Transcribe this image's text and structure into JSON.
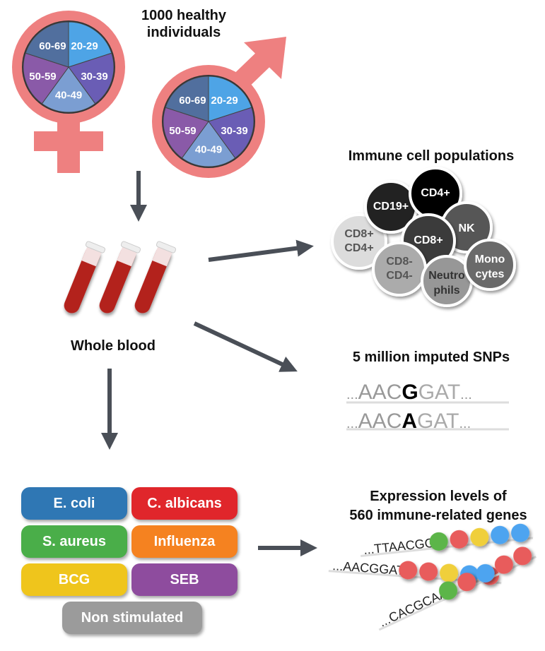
{
  "cohort": {
    "title_line1": "1000 healthy",
    "title_line2": "individuals",
    "age_groups": [
      "20-29",
      "30-39",
      "40-49",
      "50-59",
      "60-69"
    ],
    "age_colors": [
      "#4ea4e6",
      "#6a5db5",
      "#7b9ed2",
      "#8a5aa8",
      "#516f9e"
    ],
    "symbol_color": "#ee8080"
  },
  "sample": {
    "label": "Whole blood",
    "tube_color": "#b3201e"
  },
  "immune": {
    "title": "Immune cell populations",
    "cells": [
      {
        "label": "CD8+ CD4+",
        "l1": "CD8",
        "s1": "+",
        "l2": "CD4",
        "s2": "+",
        "fill": "#dcdcdc",
        "text": "#555"
      },
      {
        "label": "CD19+",
        "l1": "CD19",
        "s1": "+",
        "fill": "#222",
        "text": "#fff"
      },
      {
        "label": "CD4+",
        "l1": "CD4",
        "s1": "+",
        "fill": "#000",
        "text": "#fff"
      },
      {
        "label": "NK",
        "l1": "NK",
        "fill": "#575757",
        "text": "#fff"
      },
      {
        "label": "CD8+",
        "l1": "CD8",
        "s1": "+",
        "fill": "#3a3a3a",
        "text": "#fff"
      },
      {
        "label": "CD8- CD4-",
        "l1": "CD8",
        "s1": "-",
        "l2": "CD4",
        "s2": "-",
        "fill": "#ababab",
        "text": "#555"
      },
      {
        "label": "Neutrophils",
        "l1": "Neutro",
        "l2": "phils",
        "fill": "#979797",
        "text": "#333"
      },
      {
        "label": "Monocytes",
        "l1": "Mono",
        "l2": "cytes",
        "fill": "#6b6b6b",
        "text": "#fff"
      }
    ]
  },
  "snps": {
    "title": "5 million imputed SNPs",
    "seq1": {
      "pre": "AAC",
      "snp": "G",
      "post": "GAT"
    },
    "seq2": {
      "pre": "AAC",
      "snp": "A",
      "post": "GAT"
    },
    "ellipsis": "..."
  },
  "stimuli": [
    {
      "label": "E. coli",
      "color": "#2f77b4"
    },
    {
      "label": "C. albicans",
      "color": "#e0262b"
    },
    {
      "label": "S. aureus",
      "color": "#4aae49"
    },
    {
      "label": "Influenza",
      "color": "#f58220"
    },
    {
      "label": "BCG",
      "color": "#efc51c"
    },
    {
      "label": "SEB",
      "color": "#8e4c9e"
    },
    {
      "label": "Non stimulated",
      "color": "#9b9b9b"
    }
  ],
  "expression": {
    "title_line1": "Expression levels of",
    "title_line2": "560 immune-related genes",
    "rows": [
      {
        "seq": "...TTAACGG",
        "beads": [
          "#5cb548",
          "#e85c5c",
          "#f0cf3a",
          "#4ea4f0",
          "#4ea4f0"
        ]
      },
      {
        "seq": "...AACGGAT",
        "beads": [
          "#e85c5c",
          "#e85c5c",
          "#f0cf3a",
          "#4ea4f0",
          "#e85c5c"
        ]
      },
      {
        "seq": "...CACGCAA",
        "beads": [
          "#5cb548",
          "#e85c5c",
          "#4ea4f0",
          "#e85c5c",
          "#e85c5c"
        ]
      }
    ]
  }
}
